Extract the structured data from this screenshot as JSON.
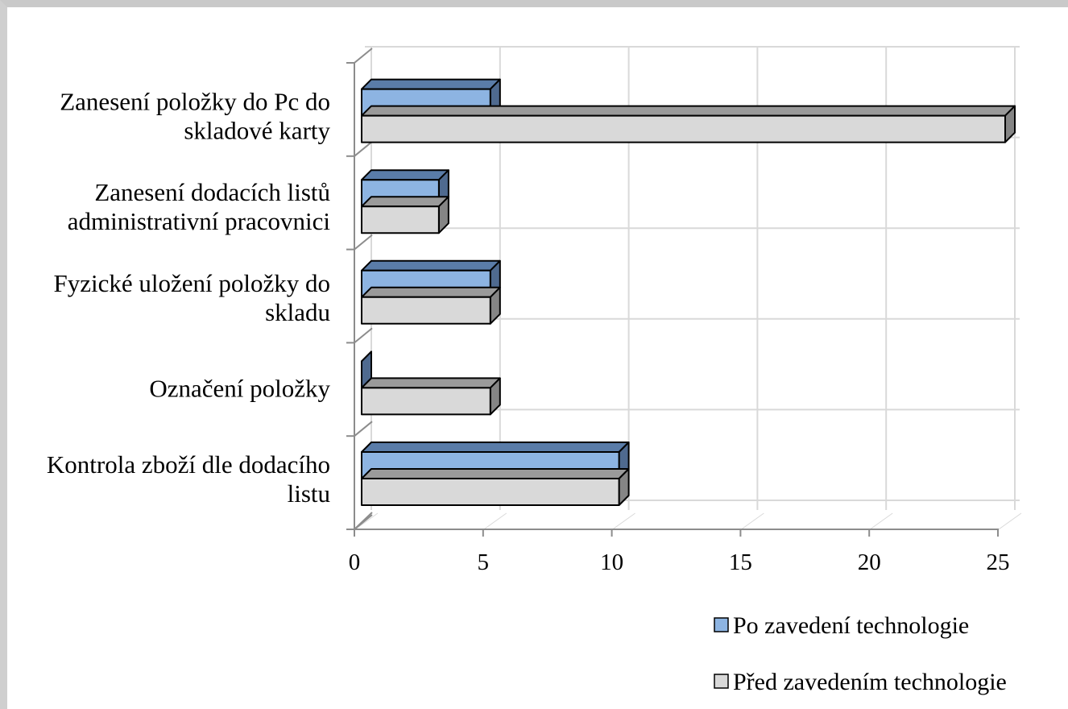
{
  "chart_data": {
    "type": "bar",
    "orientation": "horizontal",
    "style": "3d-clustered",
    "title": "",
    "xlabel": "",
    "ylabel": "",
    "categories": [
      [
        "Kontrola zboží dle dodacího",
        "listu"
      ],
      [
        "Označení položky"
      ],
      [
        "Fyzické uložení položky do",
        "skladu"
      ],
      [
        "Zanesení dodacích listů",
        "administrativní pracovnici"
      ],
      [
        "Zanesení položky do Pc do",
        "skladové karty"
      ]
    ],
    "series": [
      {
        "name": "Před zavedením technologie",
        "values": [
          10,
          5,
          5,
          3,
          25
        ],
        "color": "#d9d9d9",
        "top": "#9a9a9a",
        "side": "#858585"
      },
      {
        "name": "Po zavedení technologie",
        "values": [
          10,
          0,
          5,
          3,
          5
        ],
        "color": "#8db4e2",
        "top": "#5a7ca8",
        "side": "#4f6a8f"
      }
    ],
    "xlim": [
      0,
      25
    ],
    "xticks": [
      0,
      5,
      10,
      15,
      20,
      25
    ],
    "grid": true,
    "legend": {
      "position": "bottom-right",
      "entries": [
        "Po zavedení technologie",
        "Před zavedením technologie"
      ]
    }
  }
}
